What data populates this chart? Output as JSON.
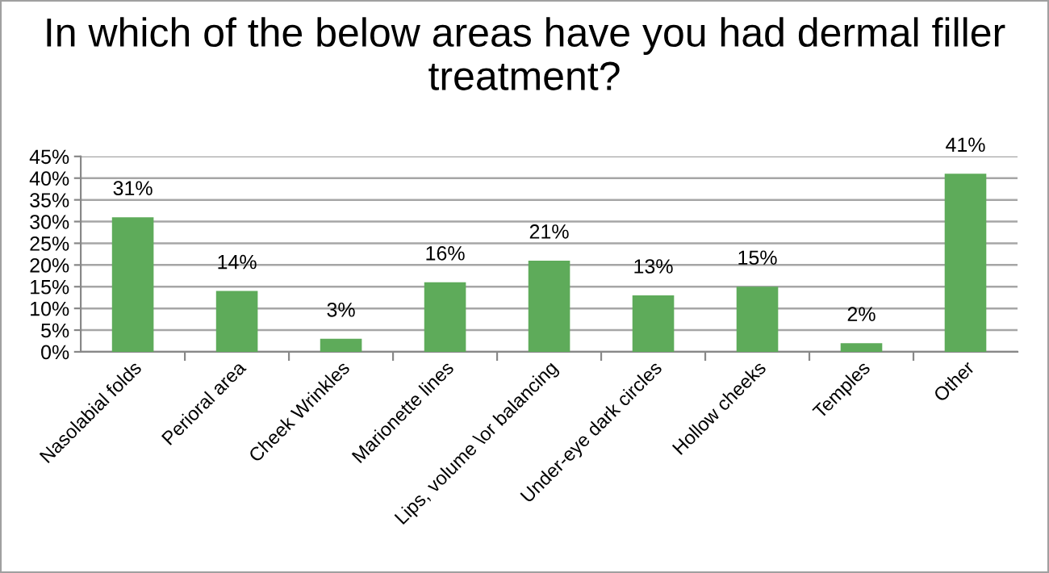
{
  "chart_data": {
    "type": "bar",
    "title": "In which of the below areas have you had dermal filler treatment?",
    "categories": [
      "Nasolabial folds",
      "Perioral area",
      "Cheek Wrinkles",
      "Marionette lines",
      "Lips, volume \\or balancing",
      "Under-eye dark circles",
      "Hollow cheeks",
      "Temples",
      "Other"
    ],
    "values": [
      31,
      14,
      3,
      16,
      21,
      13,
      15,
      2,
      41
    ],
    "value_labels": [
      "31%",
      "14%",
      "3%",
      "16%",
      "21%",
      "13%",
      "15%",
      "2%",
      "41%"
    ],
    "color": "#5eab5a",
    "ylim": [
      0,
      45
    ],
    "yticks": [
      {
        "value": 0,
        "label": "0%"
      },
      {
        "value": 5,
        "label": "5%"
      },
      {
        "value": 10,
        "label": "10%"
      },
      {
        "value": 15,
        "label": "15%"
      },
      {
        "value": 20,
        "label": "20%"
      },
      {
        "value": 25,
        "label": "25%"
      },
      {
        "value": 30,
        "label": "30%"
      },
      {
        "value": 35,
        "label": "35%"
      },
      {
        "value": 40,
        "label": "40%"
      },
      {
        "value": 45,
        "label": "45%"
      }
    ],
    "grid": "y",
    "legend": false
  }
}
